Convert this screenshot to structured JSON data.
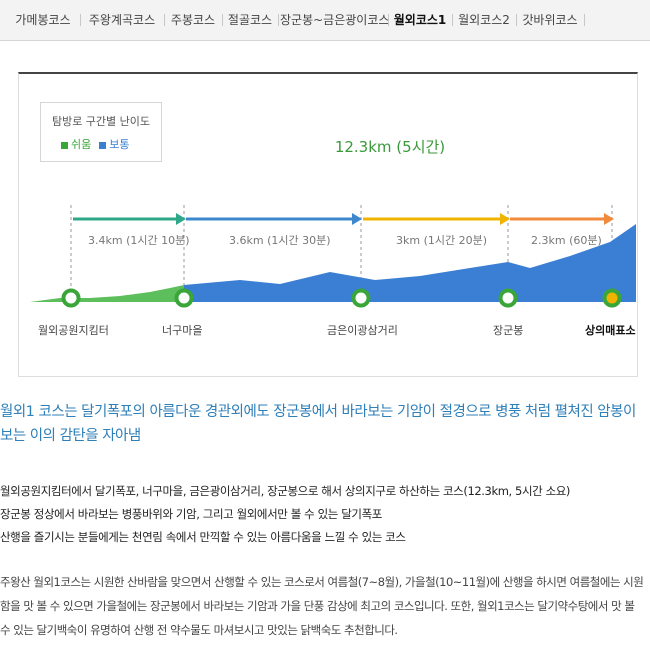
{
  "tabs": [
    {
      "label": "가메봉코스",
      "active": false
    },
    {
      "label": "주왕계곡코스",
      "active": false
    },
    {
      "label": "주봉코스",
      "active": false
    },
    {
      "label": "절골코스",
      "active": false
    },
    {
      "label": "장군봉~금은광이코스",
      "active": false
    },
    {
      "label": "월외코스1",
      "active": true
    },
    {
      "label": "월외코스2",
      "active": false
    },
    {
      "label": "갓바위코스",
      "active": false
    }
  ],
  "legend": {
    "title": "탐방로 구간별 난이도",
    "items": [
      {
        "label": "쉬움",
        "color": "#3aa63a"
      },
      {
        "label": "보통",
        "color": "#3a7fd0"
      }
    ]
  },
  "total": "12.3km (5시간)",
  "segments": [
    {
      "label": "3.4km (1시간 10분)",
      "color": "#2fa88a"
    },
    {
      "label": "3.6km (1시간 30분)",
      "color": "#3d88cc"
    },
    {
      "label": "3km (1시간 20분)",
      "color": "#f0b400"
    },
    {
      "label": "2.3km (60분)",
      "color": "#f08a3c"
    }
  ],
  "stops": [
    {
      "label": "월외공원지킴터",
      "emphasis": false
    },
    {
      "label": "너구마을",
      "emphasis": false
    },
    {
      "label": "금은이광삼거리",
      "emphasis": false
    },
    {
      "label": "장군봉",
      "emphasis": false
    },
    {
      "label": "상의매표소",
      "emphasis": true
    }
  ],
  "colors": {
    "easy_fill": "#5cbf5c",
    "normal_fill": "#3b7fd4",
    "stop_ring": "#3aa63a",
    "end_marker": "#f0b400"
  },
  "headline": "월외1 코스는 달기폭포의 아름다운 경관외에도 장군봉에서 바라보는 기암이 절경으로 병풍 처럼 펼쳐진 암봉이 보는 이의 감탄을 자아냄",
  "summary": [
    "월외공원지킴터에서 달기폭포, 너구마을, 금은광이삼거리, 장군봉으로 해서 상의지구로 하산하는 코스(12.3km, 5시간 소요)",
    "장군봉 정상에서 바라보는 병풍바위와 기암, 그리고 월외에서만 볼 수 있는 달기폭포",
    "산행을 즐기시는 분들에게는 천연림 속에서 만끽할 수 있는 아름다움을 느낄 수 있는 코스"
  ],
  "description": "주왕산 월외1코스는 시원한 산바람을 맞으면서 산행할 수 있는 코스로서 여름철(7~8월), 가을철(10~11월)에 산행을 하시면 여름철에는 시원함을 맛 볼 수 있으면 가을철에는 장군봉에서 바라보는 기암과 가을 단풍 감상에 최고의 코스입니다. 또한, 월외1코스는 달기약수탕에서 맛 볼 수 있는 달기백숙이 유명하여 산행 전 약수물도 마셔보시고 맛있는 닭백숙도 추천합니다."
}
